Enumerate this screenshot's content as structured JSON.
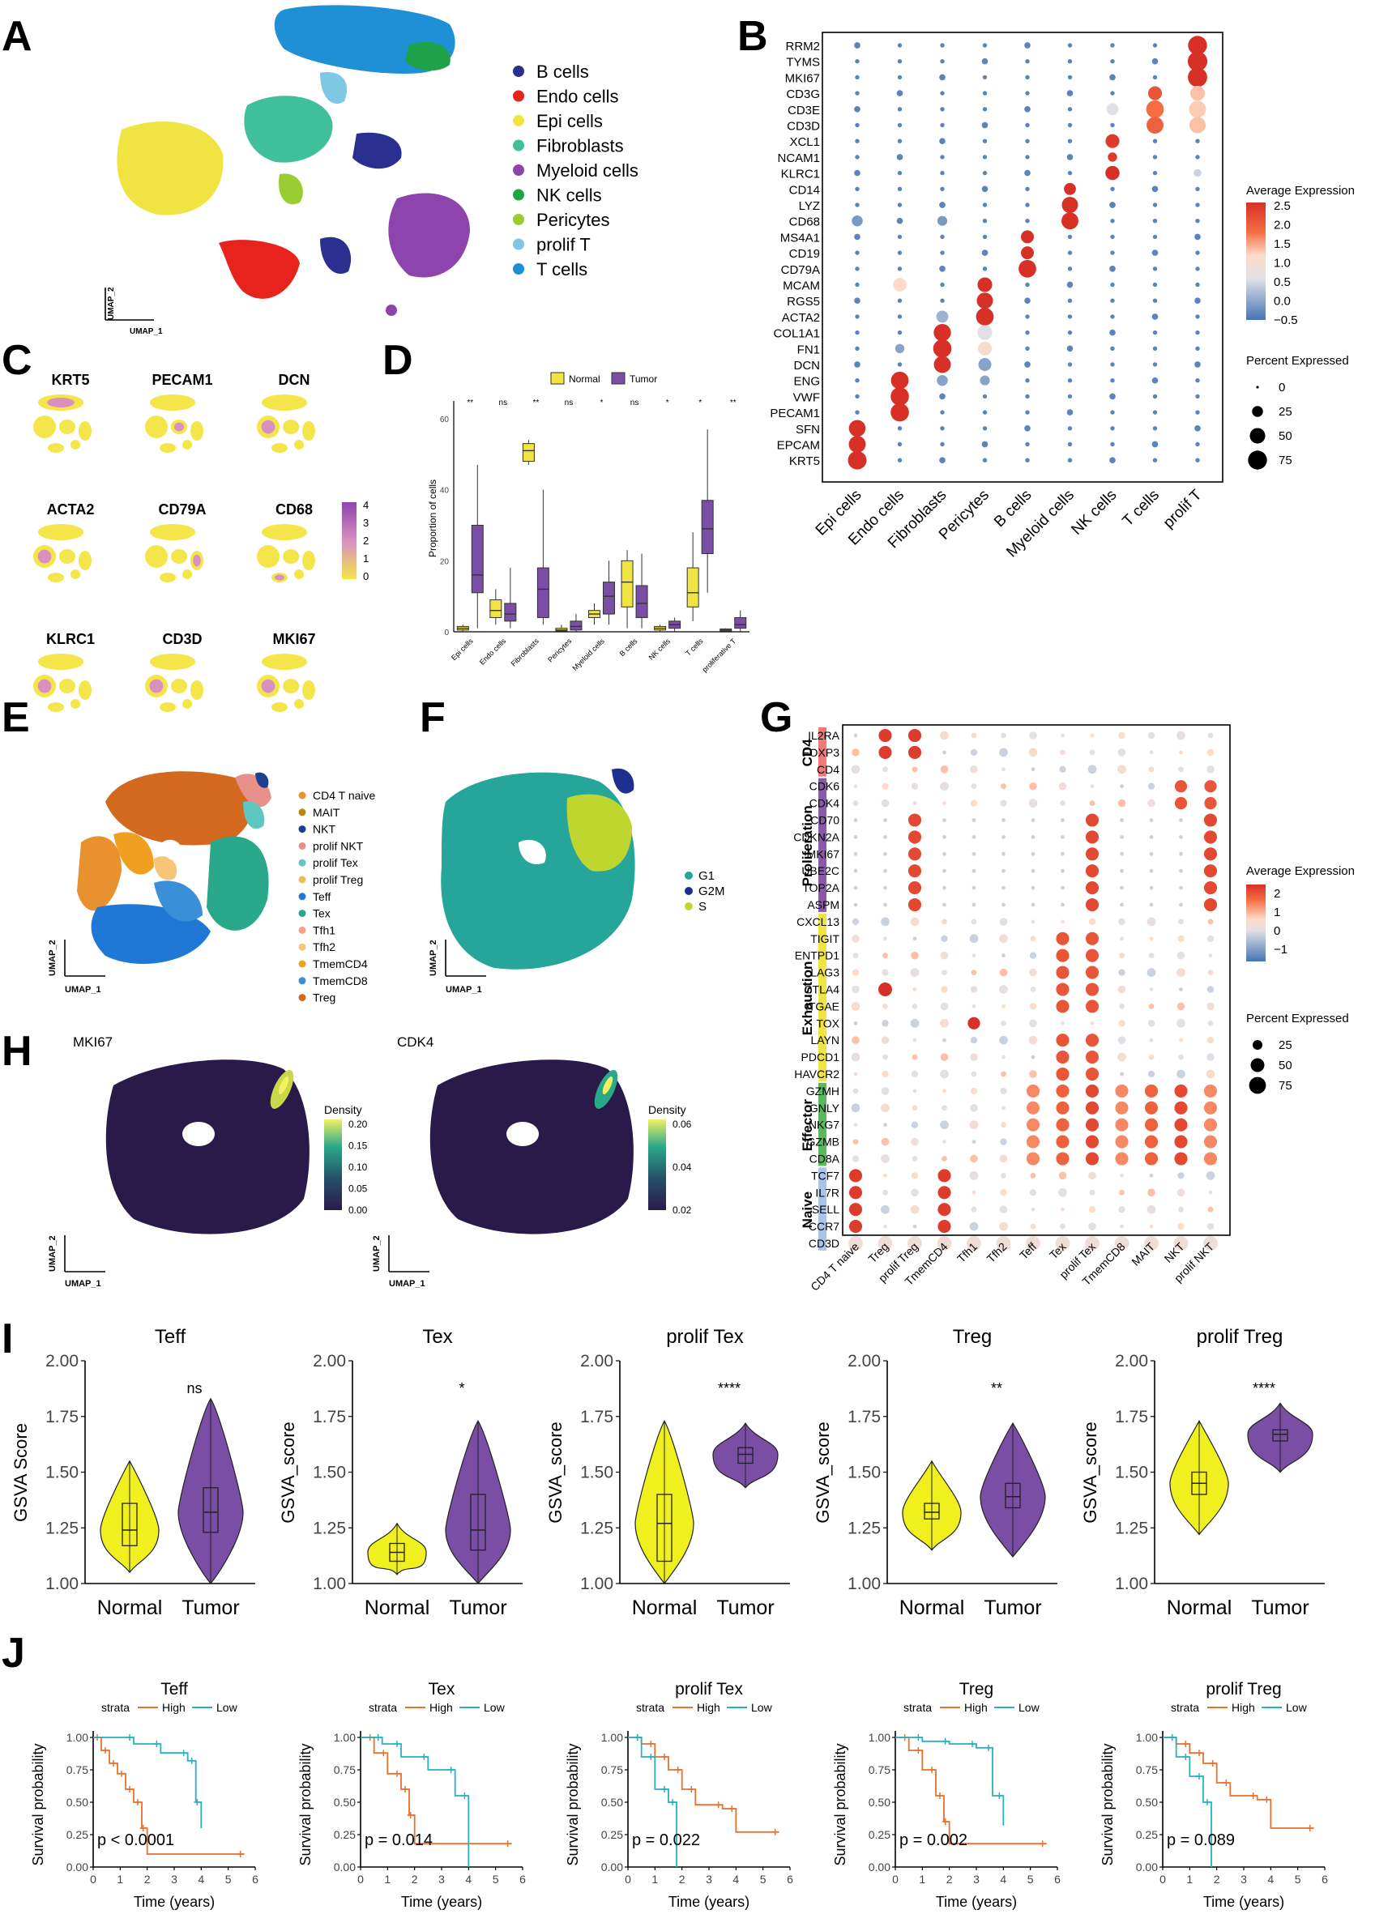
{
  "panel_labels": {
    "A": "A",
    "B": "B",
    "C": "C",
    "D": "D",
    "E": "E",
    "F": "F",
    "G": "G",
    "H": "H",
    "I": "I",
    "J": "J"
  },
  "colors": {
    "yellow": "#f0e442",
    "purple": "#7a4ea4",
    "orange": "#e8712e",
    "teal": "#26b1c5",
    "navy": "#1f1f8f",
    "red": "#e8221c"
  },
  "umap_axes": {
    "x": "UMAP_1",
    "y": "UMAP_2"
  },
  "panelA": {
    "legend": [
      {
        "label": "B cells",
        "color": "#2b2f8f"
      },
      {
        "label": "Endo cells",
        "color": "#e8221c"
      },
      {
        "label": "Epi cells",
        "color": "#f0e442"
      },
      {
        "label": "Fibroblasts",
        "color": "#3fbf9a"
      },
      {
        "label": "Myeloid cells",
        "color": "#8e44ad"
      },
      {
        "label": "NK cells",
        "color": "#1fa34a"
      },
      {
        "label": "Pericytes",
        "color": "#9acd32"
      },
      {
        "label": "prolif T",
        "color": "#7ec8e3"
      },
      {
        "label": "T cells",
        "color": "#1f8fd6"
      }
    ]
  },
  "panelB": {
    "genes": [
      "RRM2",
      "TYMS",
      "MKI67",
      "CD3G",
      "CD3E",
      "CD3D",
      "XCL1",
      "NCAM1",
      "KLRC1",
      "CD14",
      "LYZ",
      "CD68",
      "MS4A1",
      "CD19",
      "CD79A",
      "MCAM",
      "RGS5",
      "ACTA2",
      "COL1A1",
      "FN1",
      "DCN",
      "ENG",
      "VWF",
      "PECAM1",
      "SFN",
      "EPCAM",
      "KRT5"
    ],
    "cells": [
      "Epi cells",
      "Endo cells",
      "Fibroblasts",
      "Pericytes",
      "B cells",
      "Myeloid cells",
      "NK cells",
      "T cells",
      "prolif T"
    ],
    "legend_title": "Average Expression",
    "legend_ticks": [
      "2.5",
      "2.0",
      "1.5",
      "1.0",
      "0.5",
      "0.0",
      "−0.5"
    ],
    "pct_title": "Percent Expressed",
    "pct_ticks": [
      "0",
      "25",
      "50",
      "75"
    ]
  },
  "panelC": {
    "genes": [
      "KRT5",
      "PECAM1",
      "DCN",
      "ACTA2",
      "CD79A",
      "CD68",
      "KLRC1",
      "CD3D",
      "MKI67"
    ],
    "scale_ticks": [
      "4",
      "3",
      "2",
      "1",
      "0"
    ]
  },
  "panelD": {
    "legend": [
      "Normal",
      "Tumor"
    ],
    "ylabel": "Proportion of cells",
    "yticks": [
      "0",
      "20",
      "40",
      "60"
    ],
    "categories": [
      "Epi cells",
      "Endo cells",
      "Fibroblasts",
      "Pericytes",
      "Myeloid cells",
      "B cells",
      "NK cells",
      "T cells",
      "proliferative T"
    ],
    "significance": [
      "**",
      "ns",
      "**",
      "ns",
      "*",
      "ns",
      "*",
      "*",
      "**"
    ]
  },
  "panelE": {
    "legend": [
      {
        "label": "CD4 T naive",
        "color": "#e8912e"
      },
      {
        "label": "MAIT",
        "color": "#b8860b"
      },
      {
        "label": "NKT",
        "color": "#1f3f8f"
      },
      {
        "label": "prolif NKT",
        "color": "#e8908a"
      },
      {
        "label": "prolif Tex",
        "color": "#5fc7c0"
      },
      {
        "label": "prolif Treg",
        "color": "#e8c05a"
      },
      {
        "label": "Teff",
        "color": "#1f77d6"
      },
      {
        "label": "Tex",
        "color": "#2aa88a"
      },
      {
        "label": "Tfh1",
        "color": "#f4a582"
      },
      {
        "label": "Tfh2",
        "color": "#f7c57a"
      },
      {
        "label": "TmemCD4",
        "color": "#f0a020"
      },
      {
        "label": "TmemCD8",
        "color": "#3a8fd6"
      },
      {
        "label": "Treg",
        "color": "#d2691e"
      }
    ]
  },
  "panelF": {
    "legend": [
      {
        "label": "G1",
        "color": "#26a69a"
      },
      {
        "label": "G2M",
        "color": "#1f2f8f"
      },
      {
        "label": "S",
        "color": "#c0d630"
      }
    ]
  },
  "panelG": {
    "groups": [
      {
        "name": "CD4",
        "color": "#f07a7a",
        "genes": [
          "IL2RA",
          "FOXP3",
          "CD4"
        ]
      },
      {
        "name": "Proliferation",
        "color": "#8a5aa8",
        "genes": [
          "CDK6",
          "CDK4",
          "CD70",
          "CDKN2A",
          "MKI67",
          "UBE2C",
          "TOP2A",
          "ASPM"
        ]
      },
      {
        "name": "Exhaustion",
        "color": "#f0e442",
        "genes": [
          "CXCL13",
          "TIGIT",
          "ENTPD1",
          "LAG3",
          "CTLA4",
          "ITGAE",
          "TOX",
          "LAYN",
          "PDCD1",
          "HAVCR2"
        ]
      },
      {
        "name": "Effector",
        "color": "#5cb85c",
        "genes": [
          "GZMH",
          "GNLY",
          "NKG7",
          "GZMB",
          "CD8A"
        ]
      },
      {
        "name": "Naive",
        "color": "#a9c4e8",
        "genes": [
          "TCF7",
          "IL7R",
          "SELL",
          "CCR7",
          "CD3D"
        ]
      }
    ],
    "cells": [
      "CD4 T naive",
      "Treg",
      "prolif Treg",
      "TmemCD4",
      "Tfh1",
      "Tfh2",
      "Teff",
      "Tex",
      "prolif Tex",
      "TmemCD8",
      "MAIT",
      "NKT",
      "prolif NKT"
    ],
    "legend_title": "Average Expression",
    "legend_ticks": [
      "2",
      "1",
      "0",
      "−1"
    ],
    "pct_title": "Percent Expressed",
    "pct_ticks": [
      "25",
      "50",
      "75"
    ]
  },
  "panelH": {
    "plots": [
      {
        "title": "MKI67",
        "legend": "Density",
        "ticks": [
          "0.20",
          "0.15",
          "0.10",
          "0.05",
          "0.00"
        ]
      },
      {
        "title": "CDK4",
        "legend": "Density",
        "ticks": [
          "0.06",
          "0.04",
          "0.02"
        ]
      }
    ]
  },
  "chart_data": [
    {
      "type": "violin",
      "panel": "I",
      "title": "Teff",
      "ylabel": "GSVA Score",
      "categories": [
        "Normal",
        "Tumor"
      ],
      "significance": "ns",
      "ylim": [
        1.0,
        2.0
      ],
      "yticks": [
        "2.00",
        "1.75",
        "1.50",
        "1.25",
        "1.00"
      ],
      "series": [
        {
          "name": "Normal",
          "median": 1.24,
          "q1": 1.17,
          "q3": 1.36,
          "min": 1.05,
          "max": 1.55
        },
        {
          "name": "Tumor",
          "median": 1.32,
          "q1": 1.23,
          "q3": 1.43,
          "min": 1.0,
          "max": 1.83
        }
      ]
    },
    {
      "type": "violin",
      "panel": "I",
      "title": "Tex",
      "ylabel": "GSVA_score",
      "categories": [
        "Normal",
        "Tumor"
      ],
      "significance": "*",
      "ylim": [
        1.0,
        2.0
      ],
      "yticks": [
        "2.00",
        "1.75",
        "1.50",
        "1.25",
        "1.00"
      ],
      "series": [
        {
          "name": "Normal",
          "median": 1.14,
          "q1": 1.1,
          "q3": 1.18,
          "min": 1.04,
          "max": 1.27
        },
        {
          "name": "Tumor",
          "median": 1.24,
          "q1": 1.15,
          "q3": 1.4,
          "min": 1.0,
          "max": 1.73
        }
      ]
    },
    {
      "type": "violin",
      "panel": "I",
      "title": "prolif Tex",
      "ylabel": "GSVA_score",
      "categories": [
        "Normal",
        "Tumor"
      ],
      "significance": "****",
      "ylim": [
        1.0,
        2.0
      ],
      "yticks": [
        "2.00",
        "1.75",
        "1.50",
        "1.25",
        "1.00"
      ],
      "series": [
        {
          "name": "Normal",
          "median": 1.27,
          "q1": 1.1,
          "q3": 1.4,
          "min": 1.0,
          "max": 1.73
        },
        {
          "name": "Tumor",
          "median": 1.58,
          "q1": 1.54,
          "q3": 1.61,
          "min": 1.43,
          "max": 1.72
        }
      ]
    },
    {
      "type": "violin",
      "panel": "I",
      "title": "Treg",
      "ylabel": "GSVA_score",
      "categories": [
        "Normal",
        "Tumor"
      ],
      "significance": "**",
      "ylim": [
        1.0,
        2.0
      ],
      "yticks": [
        "2.00",
        "1.75",
        "1.50",
        "1.25",
        "1.00"
      ],
      "series": [
        {
          "name": "Normal",
          "median": 1.32,
          "q1": 1.29,
          "q3": 1.36,
          "min": 1.15,
          "max": 1.55
        },
        {
          "name": "Tumor",
          "median": 1.39,
          "q1": 1.34,
          "q3": 1.45,
          "min": 1.12,
          "max": 1.72
        }
      ]
    },
    {
      "type": "violin",
      "panel": "I",
      "title": "prolif Treg",
      "ylabel": "GSVA_score",
      "categories": [
        "Normal",
        "Tumor"
      ],
      "significance": "****",
      "ylim": [
        1.0,
        2.0
      ],
      "yticks": [
        "2.00",
        "1.75",
        "1.50",
        "1.25",
        "1.00"
      ],
      "series": [
        {
          "name": "Normal",
          "median": 1.45,
          "q1": 1.4,
          "q3": 1.5,
          "min": 1.22,
          "max": 1.73
        },
        {
          "name": "Tumor",
          "median": 1.67,
          "q1": 1.64,
          "q3": 1.69,
          "min": 1.5,
          "max": 1.81
        }
      ]
    },
    {
      "type": "line",
      "panel": "J",
      "title": "Teff",
      "xlabel": "Time (years)",
      "ylabel": "Survival probability",
      "pvalue": "p < 0.0001",
      "legend": [
        "strata",
        "High",
        "Low"
      ],
      "xticks": [
        "0",
        "1",
        "2",
        "3",
        "4",
        "5",
        "6"
      ],
      "yticks": [
        "1.00",
        "0.75",
        "0.50",
        "0.25",
        "0.00"
      ],
      "series": [
        {
          "name": "High",
          "x": [
            0,
            0.3,
            0.6,
            0.9,
            1.2,
            1.5,
            1.8,
            2.0,
            5.6
          ],
          "y": [
            1.0,
            0.9,
            0.8,
            0.72,
            0.6,
            0.5,
            0.3,
            0.1,
            0.1
          ]
        },
        {
          "name": "Low",
          "x": [
            0,
            1.5,
            2.5,
            3.5,
            3.8,
            4.0
          ],
          "y": [
            1.0,
            0.95,
            0.88,
            0.82,
            0.5,
            0.3
          ]
        }
      ]
    },
    {
      "type": "line",
      "panel": "J",
      "title": "Tex",
      "xlabel": "Time (years)",
      "ylabel": "Survival probability",
      "pvalue": "p = 0.014",
      "legend": [
        "strata",
        "High",
        "Low"
      ],
      "xticks": [
        "0",
        "1",
        "2",
        "3",
        "4",
        "5",
        "6"
      ],
      "yticks": [
        "1.00",
        "0.75",
        "0.50",
        "0.25",
        "0.00"
      ],
      "series": [
        {
          "name": "High",
          "x": [
            0,
            0.5,
            1.0,
            1.5,
            1.8,
            2.0,
            5.6
          ],
          "y": [
            1.0,
            0.88,
            0.72,
            0.6,
            0.4,
            0.18,
            0.18
          ]
        },
        {
          "name": "Low",
          "x": [
            0,
            0.8,
            1.5,
            2.5,
            3.5,
            4.0
          ],
          "y": [
            1.0,
            0.95,
            0.85,
            0.75,
            0.55,
            0.0
          ]
        }
      ]
    },
    {
      "type": "line",
      "panel": "J",
      "title": "prolif Tex",
      "xlabel": "Time (years)",
      "ylabel": "Survival probability",
      "pvalue": "p = 0.022",
      "legend": [
        "strata",
        "High",
        "Low"
      ],
      "xticks": [
        "0",
        "1",
        "2",
        "3",
        "4",
        "5",
        "6"
      ],
      "yticks": [
        "1.00",
        "0.75",
        "0.50",
        "0.25",
        "0.00"
      ],
      "series": [
        {
          "name": "High",
          "x": [
            0,
            0.5,
            1.0,
            1.5,
            2.0,
            2.5,
            3.5,
            4.0,
            5.6
          ],
          "y": [
            1.0,
            0.95,
            0.85,
            0.75,
            0.6,
            0.48,
            0.45,
            0.27,
            0.27
          ]
        },
        {
          "name": "Low",
          "x": [
            0,
            0.5,
            1.0,
            1.5,
            1.8
          ],
          "y": [
            1.0,
            0.85,
            0.6,
            0.5,
            0.0
          ]
        }
      ]
    },
    {
      "type": "line",
      "panel": "J",
      "title": "Treg",
      "xlabel": "Time (years)",
      "ylabel": "Survival probability",
      "pvalue": "p = 0.002",
      "legend": [
        "strata",
        "High",
        "Low"
      ],
      "xticks": [
        "0",
        "1",
        "2",
        "3",
        "4",
        "5",
        "6"
      ],
      "yticks": [
        "1.00",
        "0.75",
        "0.50",
        "0.25",
        "0.00"
      ],
      "series": [
        {
          "name": "High",
          "x": [
            0,
            0.5,
            1.0,
            1.5,
            1.8,
            2.0,
            5.6
          ],
          "y": [
            1.0,
            0.9,
            0.75,
            0.55,
            0.35,
            0.18,
            0.18
          ]
        },
        {
          "name": "Low",
          "x": [
            0,
            1.0,
            2.0,
            3.0,
            3.6,
            4.0
          ],
          "y": [
            1.0,
            0.97,
            0.95,
            0.92,
            0.55,
            0.32
          ]
        }
      ]
    },
    {
      "type": "line",
      "panel": "J",
      "title": "prolif Treg",
      "xlabel": "Time (years)",
      "ylabel": "Survival probability",
      "pvalue": "p = 0.089",
      "legend": [
        "strata",
        "High",
        "Low"
      ],
      "xticks": [
        "0",
        "1",
        "2",
        "3",
        "4",
        "5",
        "6"
      ],
      "yticks": [
        "1.00",
        "0.75",
        "0.50",
        "0.25",
        "0.00"
      ],
      "series": [
        {
          "name": "High",
          "x": [
            0,
            0.5,
            1.0,
            1.5,
            2.0,
            2.5,
            3.5,
            4.0,
            5.6
          ],
          "y": [
            1.0,
            0.95,
            0.88,
            0.8,
            0.65,
            0.55,
            0.52,
            0.3,
            0.3
          ]
        },
        {
          "name": "Low",
          "x": [
            0,
            0.5,
            1.0,
            1.5,
            1.8
          ],
          "y": [
            1.0,
            0.85,
            0.7,
            0.5,
            0.0
          ]
        }
      ]
    }
  ]
}
